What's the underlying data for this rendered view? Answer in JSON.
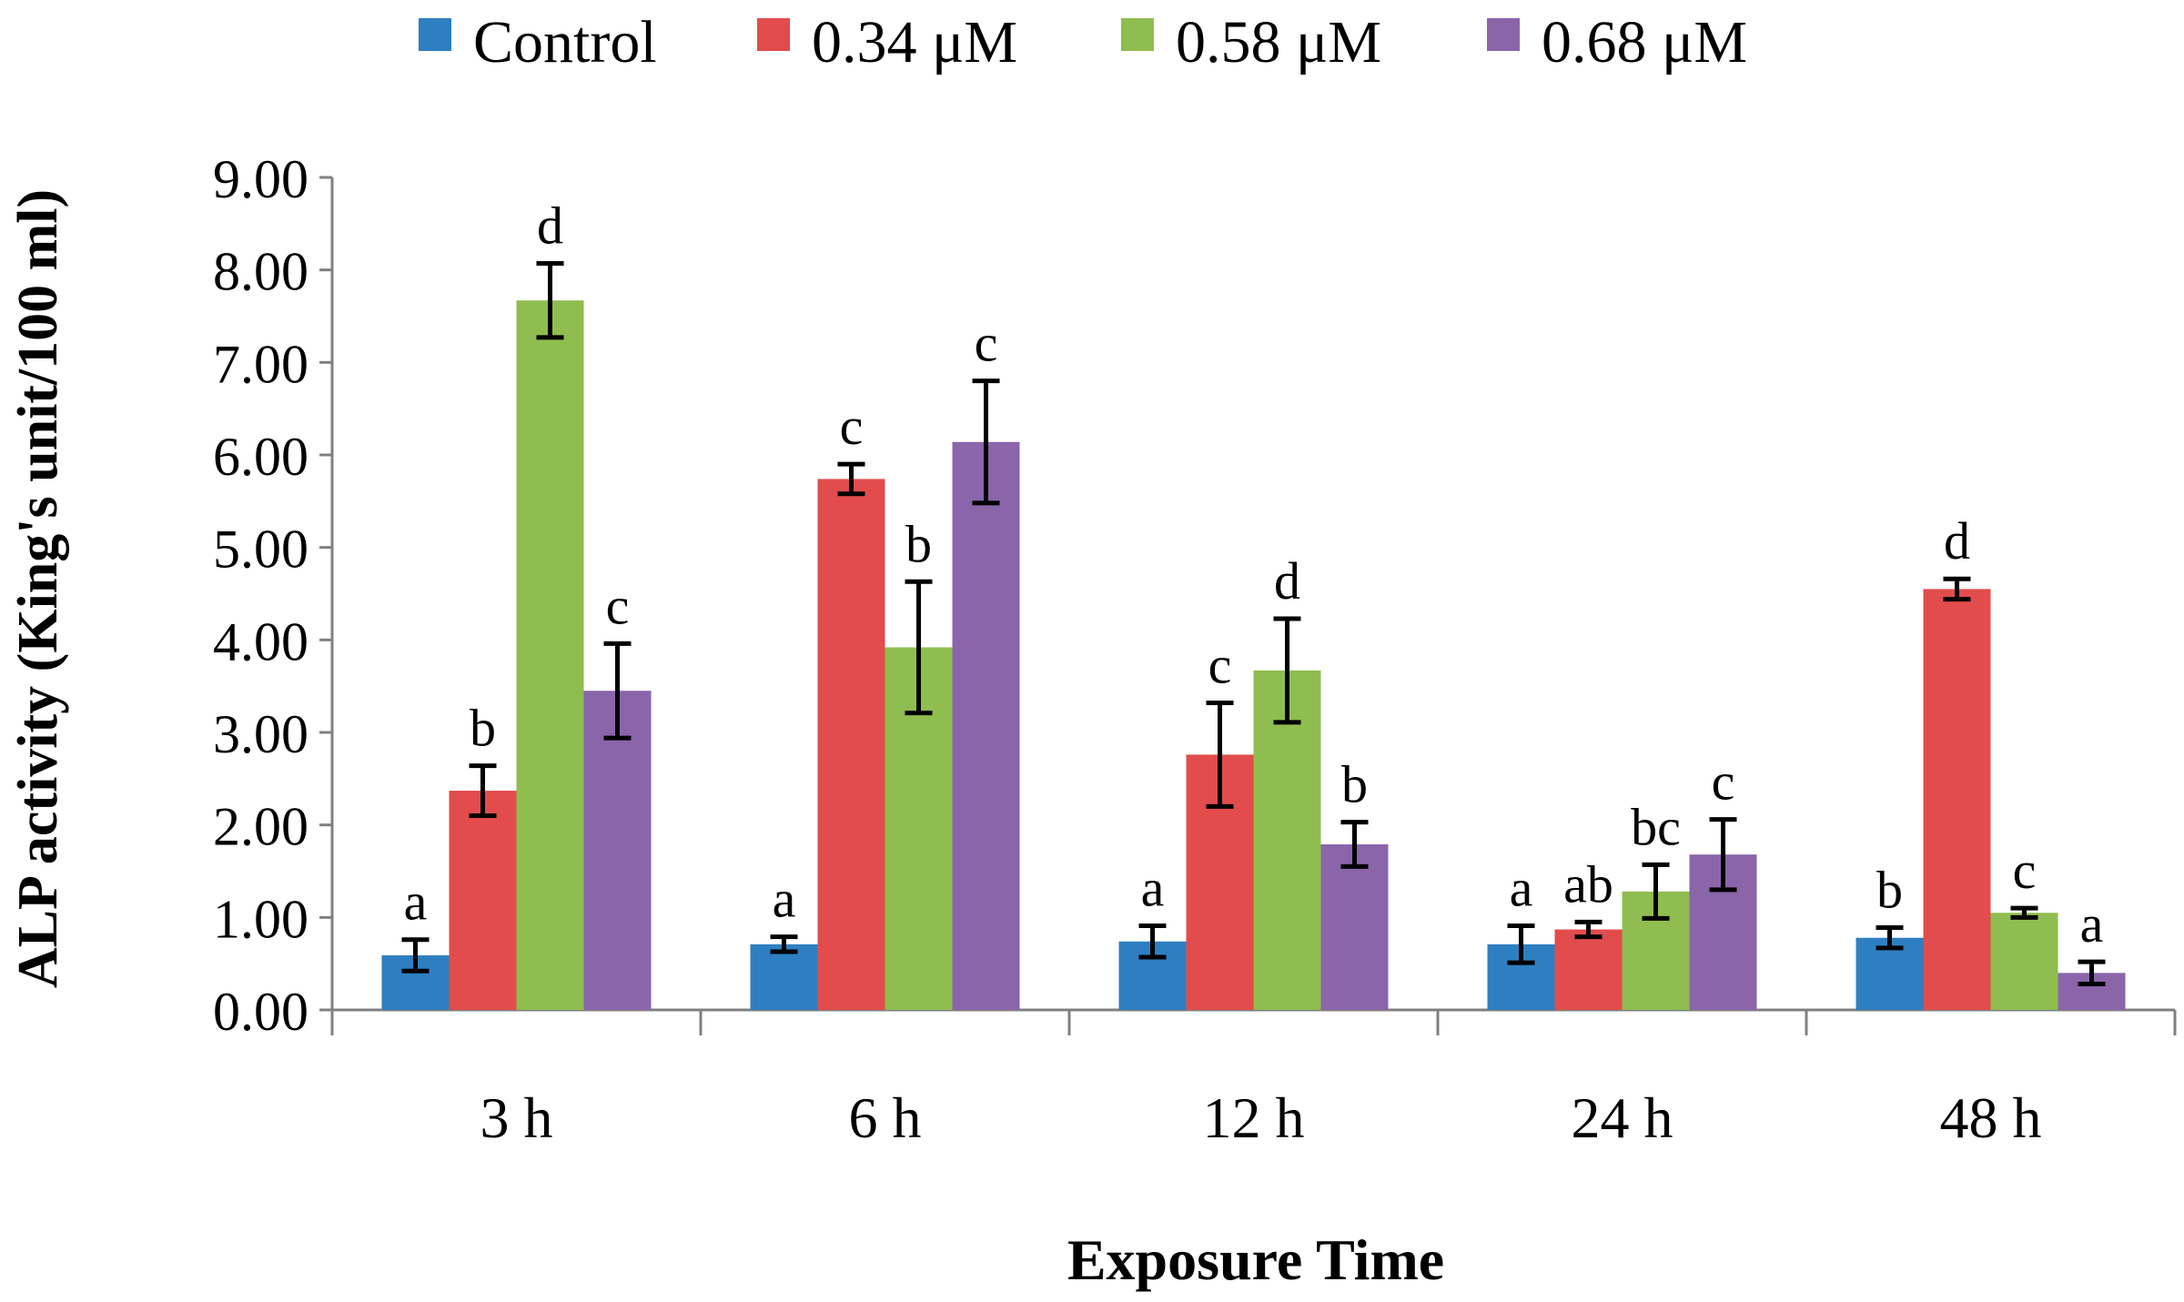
{
  "chart_data": {
    "type": "bar",
    "title": "",
    "xlabel": "Exposure Time",
    "ylabel": "ALP activity (King's unit/100 ml)",
    "ylim": [
      0,
      9
    ],
    "yticks": [
      0,
      1,
      2,
      3,
      4,
      5,
      6,
      7,
      8,
      9
    ],
    "ytick_labels": [
      "0.00",
      "1.00",
      "2.00",
      "3.00",
      "4.00",
      "5.00",
      "6.00",
      "7.00",
      "8.00",
      "9.00"
    ],
    "legend_position": "top",
    "grid": false,
    "categories": [
      "3 h",
      "6 h",
      "12 h",
      "24 h",
      "48 h"
    ],
    "series": [
      {
        "name": "Control",
        "color": "#2E7FC2",
        "values": [
          0.59,
          0.71,
          0.74,
          0.71,
          0.78
        ],
        "errors": [
          0.17,
          0.08,
          0.17,
          0.2,
          0.11
        ],
        "letters": [
          "a",
          "a",
          "a",
          "a",
          "b"
        ]
      },
      {
        "name": "0.34 μM",
        "color": "#E24C4C",
        "values": [
          2.37,
          5.74,
          2.76,
          0.87,
          4.55
        ],
        "errors": [
          0.27,
          0.16,
          0.56,
          0.08,
          0.11
        ],
        "letters": [
          "b",
          "c",
          "c",
          "ab",
          "d"
        ]
      },
      {
        "name": "0.58 μM",
        "color": "#8FBD4F",
        "values": [
          7.67,
          3.92,
          3.67,
          1.28,
          1.05
        ],
        "errors": [
          0.4,
          0.71,
          0.56,
          0.29,
          0.05
        ],
        "letters": [
          "d",
          "b",
          "d",
          "bc",
          "c"
        ]
      },
      {
        "name": "0.68 μM",
        "color": "#8A65AA",
        "values": [
          3.45,
          6.14,
          1.79,
          1.68,
          0.4
        ],
        "errors": [
          0.51,
          0.66,
          0.24,
          0.38,
          0.12
        ],
        "letters": [
          "c",
          "c",
          "b",
          "c",
          "a"
        ]
      }
    ]
  }
}
